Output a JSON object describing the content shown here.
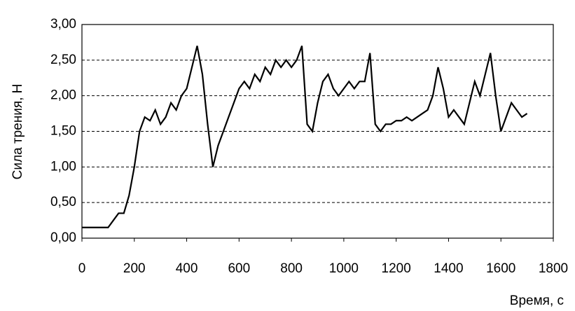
{
  "chart_data": {
    "type": "line",
    "y_label": "Сила трения, Н",
    "x_label": "Время, с",
    "x": [
      0,
      20,
      40,
      60,
      80,
      100,
      120,
      140,
      160,
      180,
      200,
      220,
      240,
      260,
      280,
      300,
      320,
      340,
      360,
      380,
      400,
      420,
      440,
      460,
      480,
      500,
      520,
      540,
      560,
      580,
      600,
      620,
      640,
      660,
      680,
      700,
      720,
      740,
      760,
      780,
      800,
      820,
      840,
      860,
      880,
      900,
      920,
      940,
      960,
      980,
      1000,
      1020,
      1040,
      1060,
      1080,
      1100,
      1120,
      1140,
      1160,
      1180,
      1200,
      1220,
      1240,
      1260,
      1280,
      1300,
      1320,
      1340,
      1360,
      1380,
      1400,
      1420,
      1440,
      1460,
      1480,
      1500,
      1520,
      1540,
      1560,
      1580,
      1600,
      1620,
      1640,
      1660,
      1680,
      1700
    ],
    "series": [
      {
        "color": "#000000",
        "values": [
          0.15,
          0.15,
          0.15,
          0.15,
          0.15,
          0.15,
          0.25,
          0.35,
          0.35,
          0.6,
          1.0,
          1.5,
          1.7,
          1.65,
          1.8,
          1.6,
          1.7,
          1.9,
          1.8,
          2.0,
          2.1,
          2.4,
          2.7,
          2.3,
          1.6,
          1.0,
          1.3,
          1.5,
          1.7,
          1.9,
          2.1,
          2.2,
          2.1,
          2.3,
          2.2,
          2.4,
          2.3,
          2.5,
          2.4,
          2.5,
          2.4,
          2.5,
          2.7,
          1.6,
          1.5,
          1.9,
          2.2,
          2.3,
          2.1,
          2.0,
          2.1,
          2.2,
          2.1,
          2.2,
          2.2,
          2.6,
          1.6,
          1.5,
          1.6,
          1.6,
          1.65,
          1.65,
          1.7,
          1.65,
          1.7,
          1.75,
          1.8,
          2.0,
          2.4,
          2.1,
          1.7,
          1.8,
          1.7,
          1.6,
          1.9,
          2.2,
          2.0,
          2.3,
          2.6,
          2.0,
          1.5,
          1.7,
          1.9,
          1.8,
          1.7,
          1.75
        ]
      }
    ],
    "xlim": [
      0,
      1800
    ],
    "xticks": [
      0,
      200,
      400,
      600,
      800,
      1000,
      1200,
      1400,
      1600,
      1800
    ],
    "ylim": [
      0,
      3
    ],
    "yticks": [
      {
        "value": 0,
        "label": "0,00"
      },
      {
        "value": 0.5,
        "label": "0,50"
      },
      {
        "value": 1,
        "label": "1,00"
      },
      {
        "value": 1.5,
        "label": "1,50"
      },
      {
        "value": 2,
        "label": "2,00"
      },
      {
        "value": 2.5,
        "label": "2,50"
      },
      {
        "value": 3,
        "label": "3,00"
      }
    ],
    "grid": true
  }
}
